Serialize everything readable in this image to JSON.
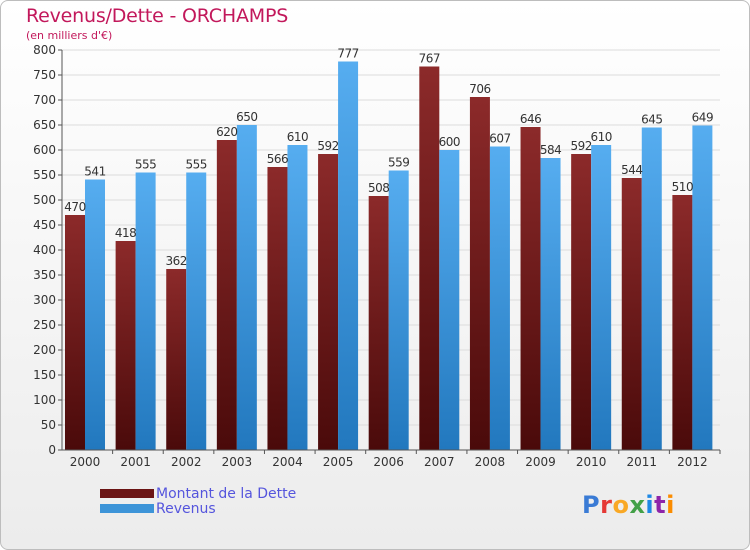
{
  "title": "Revenus/Dette - ORCHAMPS",
  "subtitle": "(en milliers d'€)",
  "logo": {
    "text": "Proxiti",
    "colors": [
      "#3a7bd5",
      "#e53935",
      "#f9a825",
      "#43a047",
      "#1e88e5",
      "#8e24aa",
      "#fb8c00"
    ]
  },
  "colors": {
    "dette": "#7a2222",
    "revenus": "#3d94d8",
    "title": "#c2185b"
  },
  "chart_data": {
    "type": "bar",
    "title": "Revenus/Dette - ORCHAMPS",
    "subtitle": "(en milliers d'€)",
    "categories": [
      "2000",
      "2001",
      "2002",
      "2003",
      "2004",
      "2005",
      "2006",
      "2007",
      "2008",
      "2009",
      "2010",
      "2011",
      "2012"
    ],
    "series": [
      {
        "name": "Montant de la Dette",
        "values": [
          470,
          418,
          362,
          620,
          566,
          592,
          508,
          767,
          706,
          646,
          592,
          544,
          510
        ]
      },
      {
        "name": "Revenus",
        "values": [
          541,
          555,
          555,
          650,
          610,
          777,
          559,
          600,
          607,
          584,
          610,
          645,
          649
        ]
      }
    ],
    "ylim": [
      0,
      800
    ],
    "yticks": [
      0,
      50,
      100,
      150,
      200,
      250,
      300,
      350,
      400,
      450,
      500,
      550,
      600,
      650,
      700,
      750,
      800
    ],
    "xlabel": "",
    "ylabel": "",
    "grid": true,
    "legend": "bottom-left"
  }
}
